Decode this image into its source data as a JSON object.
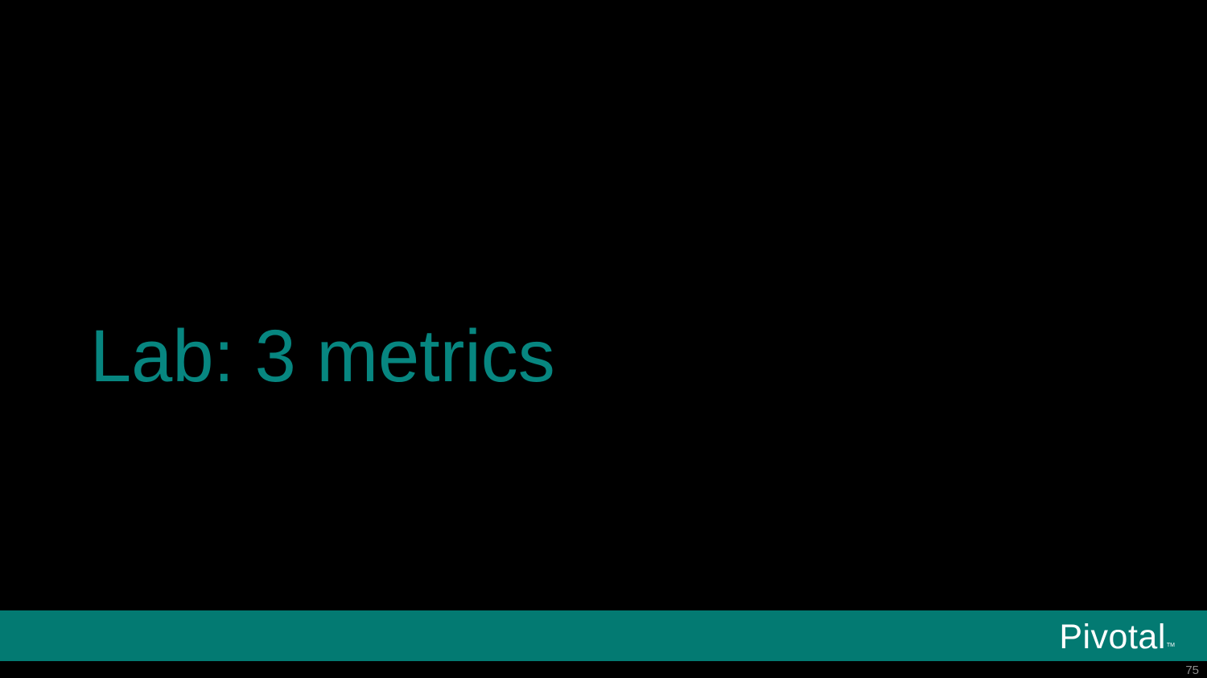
{
  "slide": {
    "title": "Lab: 3 metrics",
    "page_number": "75"
  },
  "footer": {
    "logo_text": "Pivotal",
    "logo_tm": "TM"
  },
  "colors": {
    "background": "#000000",
    "title": "#078680",
    "footer_bar": "#037a72",
    "logo": "#ffffff",
    "page_number": "#8c8c8c"
  }
}
